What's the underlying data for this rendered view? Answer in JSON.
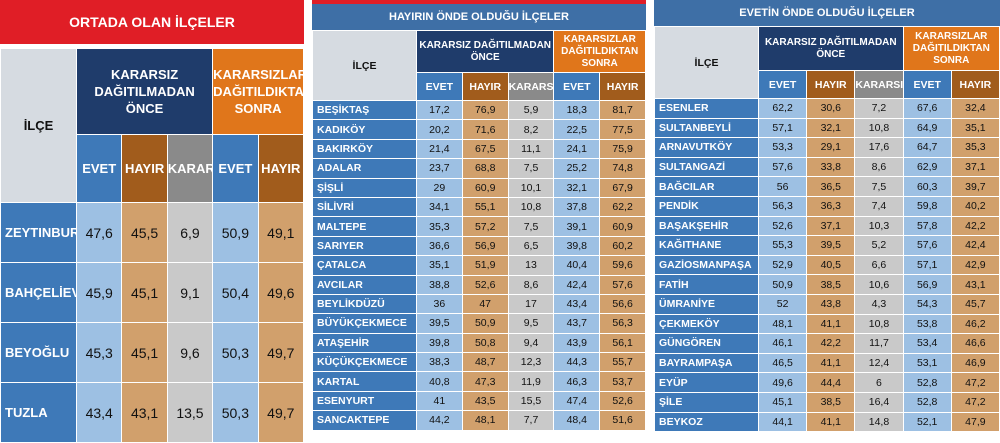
{
  "headers": {
    "district": "İLÇE",
    "before": "KARARSIZ DAĞITILMADAN ÖNCE",
    "after": "KARARSIZLAR DAĞITILDIKTAN SONRA",
    "evet": "EVET",
    "hayir": "HAYIR",
    "kararsiz": "KARARSIZ"
  },
  "panel1": {
    "title": "ORTADA OLAN İLÇELER",
    "rows": [
      {
        "name": "ZEYTINBURNU",
        "evet": "47,6",
        "hayir": "45,5",
        "kar": "6,9",
        "evet2": "50,9",
        "hayir2": "49,1"
      },
      {
        "name": "BAHÇELİEVLER",
        "evet": "45,9",
        "hayir": "45,1",
        "kar": "9,1",
        "evet2": "50,4",
        "hayir2": "49,6"
      },
      {
        "name": "BEYOĞLU",
        "evet": "45,3",
        "hayir": "45,1",
        "kar": "9,6",
        "evet2": "50,3",
        "hayir2": "49,7"
      },
      {
        "name": "TUZLA",
        "evet": "43,4",
        "hayir": "43,1",
        "kar": "13,5",
        "evet2": "50,3",
        "hayir2": "49,7"
      }
    ]
  },
  "panel2": {
    "title": "HAYIRIN ÖNDE OLDUĞU İLÇELER",
    "rows": [
      {
        "name": "BEŞİKTAŞ",
        "evet": "17,2",
        "hayir": "76,9",
        "kar": "5,9",
        "evet2": "18,3",
        "hayir2": "81,7"
      },
      {
        "name": "KADIKÖY",
        "evet": "20,2",
        "hayir": "71,6",
        "kar": "8,2",
        "evet2": "22,5",
        "hayir2": "77,5"
      },
      {
        "name": "BAKIRKÖY",
        "evet": "21,4",
        "hayir": "67,5",
        "kar": "11,1",
        "evet2": "24,1",
        "hayir2": "75,9"
      },
      {
        "name": "ADALAR",
        "evet": "23,7",
        "hayir": "68,8",
        "kar": "7,5",
        "evet2": "25,2",
        "hayir2": "74,8"
      },
      {
        "name": "ŞİŞLİ",
        "evet": "29",
        "hayir": "60,9",
        "kar": "10,1",
        "evet2": "32,1",
        "hayir2": "67,9"
      },
      {
        "name": "SİLİVRİ",
        "evet": "34,1",
        "hayir": "55,1",
        "kar": "10,8",
        "evet2": "37,8",
        "hayir2": "62,2"
      },
      {
        "name": "MALTEPE",
        "evet": "35,3",
        "hayir": "57,2",
        "kar": "7,5",
        "evet2": "39,1",
        "hayir2": "60,9"
      },
      {
        "name": "SARIYER",
        "evet": "36,6",
        "hayir": "56,9",
        "kar": "6,5",
        "evet2": "39,8",
        "hayir2": "60,2"
      },
      {
        "name": "ÇATALCA",
        "evet": "35,1",
        "hayir": "51,9",
        "kar": "13",
        "evet2": "40,4",
        "hayir2": "59,6"
      },
      {
        "name": "AVCILAR",
        "evet": "38,8",
        "hayir": "52,6",
        "kar": "8,6",
        "evet2": "42,4",
        "hayir2": "57,6"
      },
      {
        "name": "BEYLİKDÜZÜ",
        "evet": "36",
        "hayir": "47",
        "kar": "17",
        "evet2": "43,4",
        "hayir2": "56,6"
      },
      {
        "name": "BÜYÜKÇEKMECE",
        "evet": "39,5",
        "hayir": "50,9",
        "kar": "9,5",
        "evet2": "43,7",
        "hayir2": "56,3"
      },
      {
        "name": "ATAŞEHİR",
        "evet": "39,8",
        "hayir": "50,8",
        "kar": "9,4",
        "evet2": "43,9",
        "hayir2": "56,1"
      },
      {
        "name": "KÜÇÜKÇEKMECE",
        "evet": "38,3",
        "hayir": "48,7",
        "kar": "12,3",
        "evet2": "44,3",
        "hayir2": "55,7"
      },
      {
        "name": "KARTAL",
        "evet": "40,8",
        "hayir": "47,3",
        "kar": "11,9",
        "evet2": "46,3",
        "hayir2": "53,7"
      },
      {
        "name": "ESENYURT",
        "evet": "41",
        "hayir": "43,5",
        "kar": "15,5",
        "evet2": "47,4",
        "hayir2": "52,6"
      },
      {
        "name": "SANCAKTEPE",
        "evet": "44,2",
        "hayir": "48,1",
        "kar": "7,7",
        "evet2": "48,4",
        "hayir2": "51,6"
      }
    ]
  },
  "panel3": {
    "title": "EVETİN ÖNDE OLDUĞU İLÇELER",
    "rows": [
      {
        "name": "ESENLER",
        "evet": "62,2",
        "hayir": "30,6",
        "kar": "7,2",
        "evet2": "67,6",
        "hayir2": "32,4"
      },
      {
        "name": "SULTANBEYLİ",
        "evet": "57,1",
        "hayir": "32,1",
        "kar": "10,8",
        "evet2": "64,9",
        "hayir2": "35,1"
      },
      {
        "name": "ARNAVUTKÖY",
        "evet": "53,3",
        "hayir": "29,1",
        "kar": "17,6",
        "evet2": "64,7",
        "hayir2": "35,3"
      },
      {
        "name": "SULTANGAZİ",
        "evet": "57,6",
        "hayir": "33,8",
        "kar": "8,6",
        "evet2": "62,9",
        "hayir2": "37,1"
      },
      {
        "name": "BAĞCILAR",
        "evet": "56",
        "hayir": "36,5",
        "kar": "7,5",
        "evet2": "60,3",
        "hayir2": "39,7"
      },
      {
        "name": "PENDİK",
        "evet": "56,3",
        "hayir": "36,3",
        "kar": "7,4",
        "evet2": "59,8",
        "hayir2": "40,2"
      },
      {
        "name": "BAŞAKŞEHİR",
        "evet": "52,6",
        "hayir": "37,1",
        "kar": "10,3",
        "evet2": "57,8",
        "hayir2": "42,2"
      },
      {
        "name": "KAĞITHANE",
        "evet": "55,3",
        "hayir": "39,5",
        "kar": "5,2",
        "evet2": "57,6",
        "hayir2": "42,4"
      },
      {
        "name": "GAZİOSMANPAŞA",
        "evet": "52,9",
        "hayir": "40,5",
        "kar": "6,6",
        "evet2": "57,1",
        "hayir2": "42,9"
      },
      {
        "name": "FATİH",
        "evet": "50,9",
        "hayir": "38,5",
        "kar": "10,6",
        "evet2": "56,9",
        "hayir2": "43,1"
      },
      {
        "name": "ÜMRANİYE",
        "evet": "52",
        "hayir": "43,8",
        "kar": "4,3",
        "evet2": "54,3",
        "hayir2": "45,7"
      },
      {
        "name": "ÇEKMEKÖY",
        "evet": "48,1",
        "hayir": "41,1",
        "kar": "10,8",
        "evet2": "53,8",
        "hayir2": "46,2"
      },
      {
        "name": "GÜNGÖREN",
        "evet": "46,1",
        "hayir": "42,2",
        "kar": "11,7",
        "evet2": "53,4",
        "hayir2": "46,6"
      },
      {
        "name": "BAYRAMPAŞA",
        "evet": "46,5",
        "hayir": "41,1",
        "kar": "12,4",
        "evet2": "53,1",
        "hayir2": "46,9"
      },
      {
        "name": "EYÜP",
        "evet": "49,6",
        "hayir": "44,4",
        "kar": "6",
        "evet2": "52,8",
        "hayir2": "47,2"
      },
      {
        "name": "ŞİLE",
        "evet": "45,1",
        "hayir": "38,5",
        "kar": "16,4",
        "evet2": "52,8",
        "hayir2": "47,2"
      },
      {
        "name": "BEYKOZ",
        "evet": "44,1",
        "hayir": "41,1",
        "kar": "14,8",
        "evet2": "52,1",
        "hayir2": "47,9"
      }
    ]
  }
}
